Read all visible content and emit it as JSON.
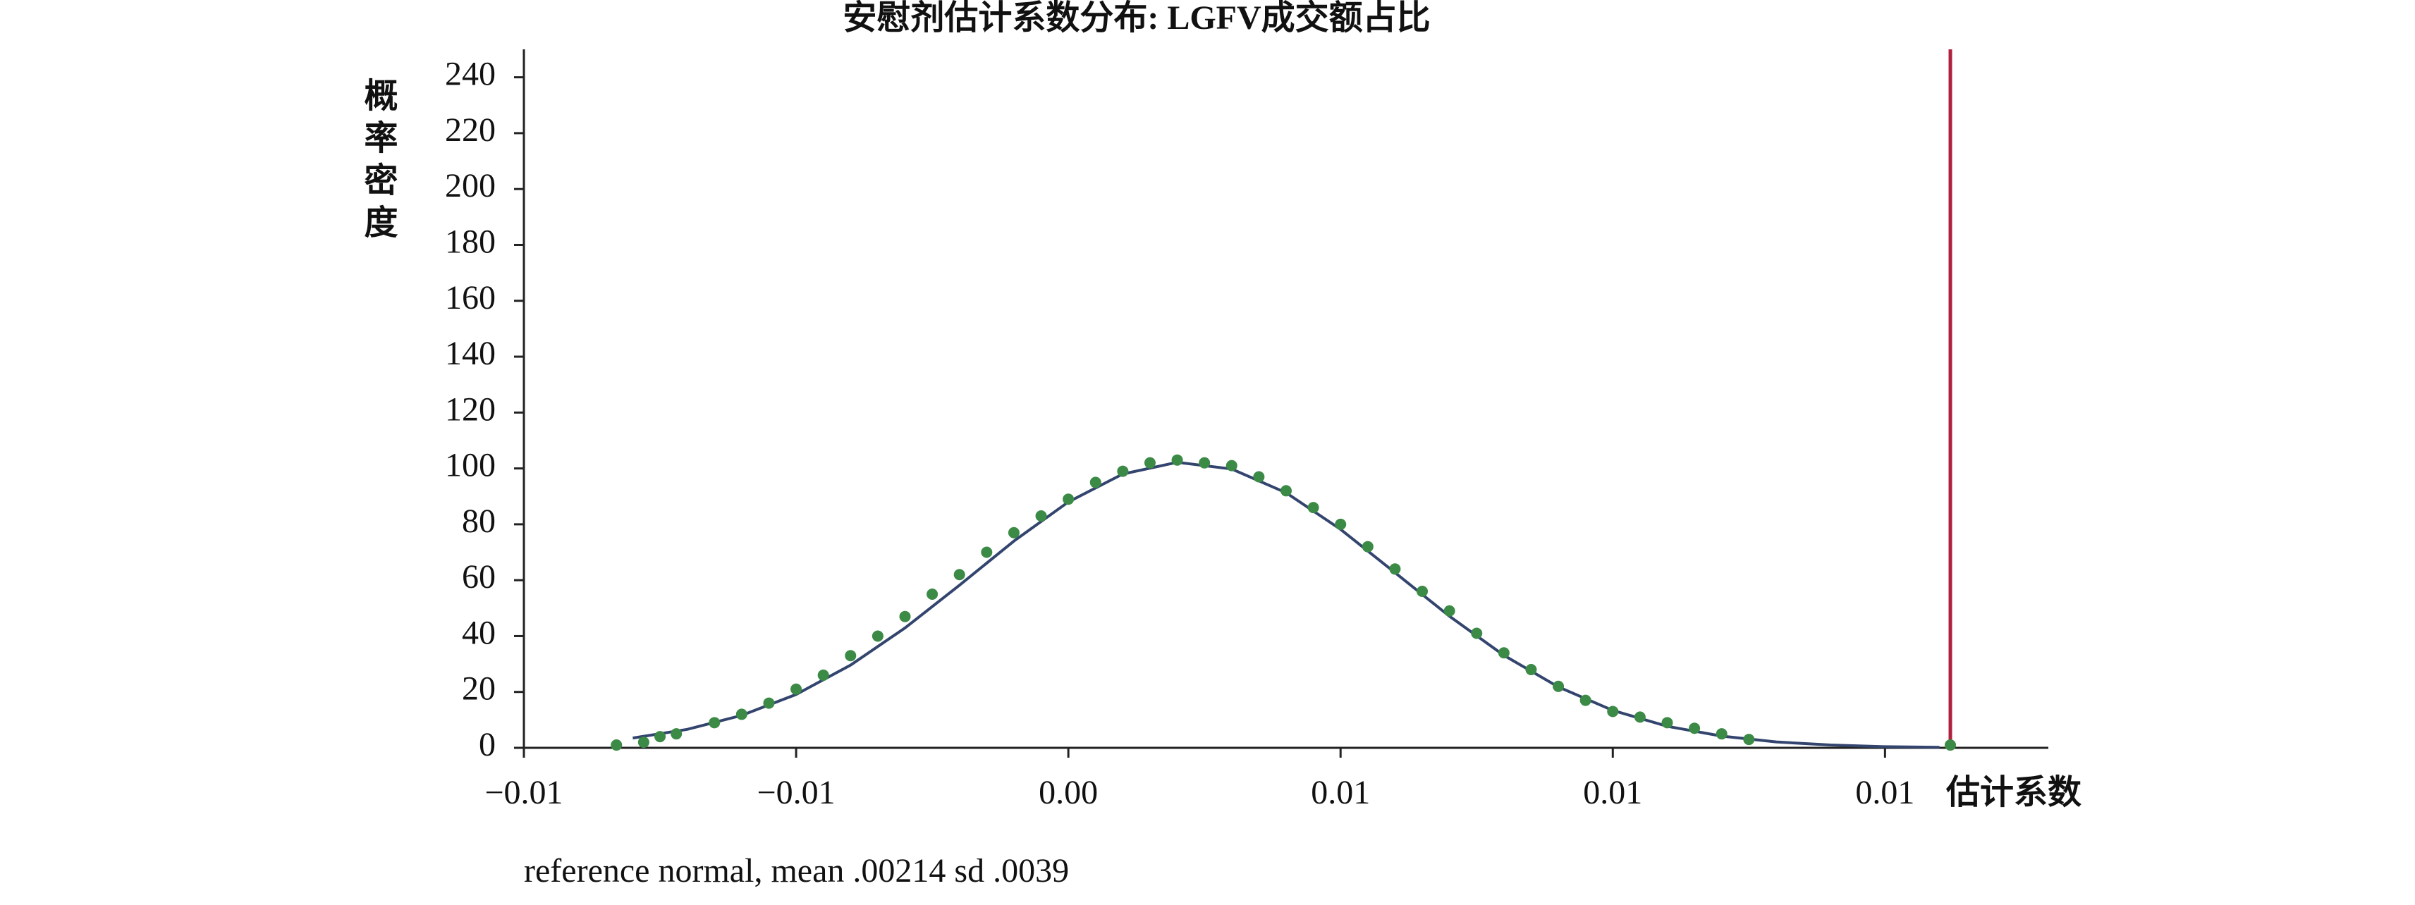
{
  "chart_data": {
    "type": "line",
    "title": "安慰剂估计系数分布: LGFV成交额占比",
    "y_label": "概率密度",
    "x_label": "估计系数",
    "note": "reference normal, mean .00214 sd .0039",
    "xlim": [
      -0.01,
      0.018
    ],
    "ylim": [
      0,
      250
    ],
    "xticks": [
      {
        "value": -0.01,
        "label": "−0.01"
      },
      {
        "value": -0.005,
        "label": "−0.01"
      },
      {
        "value": 0,
        "label": "0.00"
      },
      {
        "value": 0.005,
        "label": "0.01"
      },
      {
        "value": 0.01,
        "label": "0.01"
      },
      {
        "value": 0.015,
        "label": "0.01"
      }
    ],
    "yticks": [
      0,
      20,
      40,
      60,
      80,
      100,
      120,
      140,
      160,
      180,
      200,
      220,
      240
    ],
    "reference_line": {
      "x": 0.0162,
      "color": "#b0213f"
    },
    "series": [
      {
        "type": "line",
        "color": "#33456e",
        "x": [
          -0.008,
          -0.007,
          -0.006,
          -0.005,
          -0.004,
          -0.003,
          -0.002,
          -0.001,
          0,
          0.001,
          0.002,
          0.003,
          0.004,
          0.005,
          0.006,
          0.007,
          0.008,
          0.009,
          0.01,
          0.011,
          0.012,
          0.013,
          0.014,
          0.015,
          0.016
        ],
        "values": [
          3.5,
          6.6,
          11.6,
          19.1,
          29.6,
          42.9,
          58.2,
          74.0,
          88.0,
          98.0,
          102.2,
          99.8,
          91.3,
          78.2,
          62.7,
          47.1,
          33.1,
          21.8,
          13.4,
          7.7,
          4.2,
          2.1,
          1.0,
          0.4,
          0.2
        ]
      },
      {
        "type": "scatter",
        "color": "#3b8a45",
        "x": [
          -0.0083,
          -0.0078,
          -0.0075,
          -0.0072,
          -0.0065,
          -0.006,
          -0.0055,
          -0.005,
          -0.0045,
          -0.004,
          -0.0035,
          -0.003,
          -0.0025,
          -0.002,
          -0.0015,
          -0.001,
          -0.0005,
          0,
          0.0005,
          0.001,
          0.0015,
          0.002,
          0.0025,
          0.003,
          0.0035,
          0.004,
          0.0045,
          0.005,
          0.0055,
          0.006,
          0.0065,
          0.007,
          0.0075,
          0.008,
          0.0085,
          0.009,
          0.0095,
          0.01,
          0.0105,
          0.011,
          0.0115,
          0.012,
          0.0125,
          0.0162
        ],
        "values": [
          1,
          2,
          4,
          5,
          9,
          12,
          16,
          21,
          26,
          33,
          40,
          47,
          55,
          62,
          70,
          77,
          83,
          89,
          95,
          99,
          102,
          103,
          102,
          101,
          97,
          92,
          86,
          80,
          72,
          64,
          56,
          49,
          41,
          34,
          28,
          22,
          17,
          13,
          11,
          9,
          7,
          5,
          3,
          1
        ]
      }
    ]
  }
}
